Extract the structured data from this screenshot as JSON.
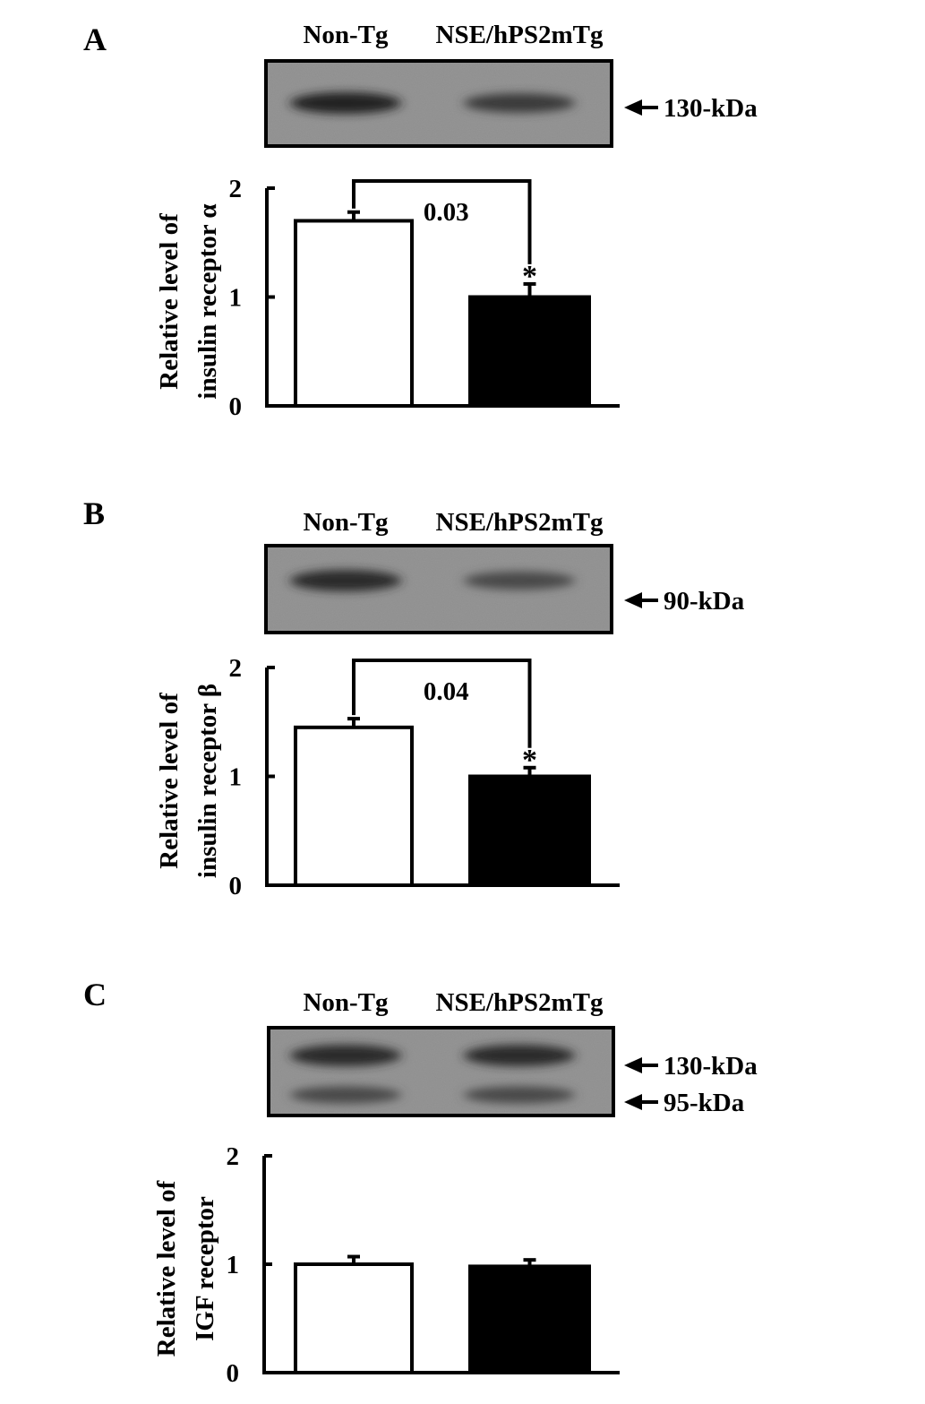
{
  "panels": [
    {
      "letter": "A",
      "lane_labels": [
        "Non-Tg",
        "NSE/hPS2mTg"
      ],
      "markers": [
        "130-kDa"
      ],
      "significance": "0.03",
      "asterisk": "*",
      "blot_bands": [
        [
          {
            "intensity": 0.95,
            "thickness": 1.0
          },
          {
            "intensity": 0.75,
            "thickness": 0.9
          }
        ]
      ]
    },
    {
      "letter": "B",
      "lane_labels": [
        "Non-Tg",
        "NSE/hPS2mTg"
      ],
      "markers": [
        "90-kDa"
      ],
      "significance": "0.04",
      "asterisk": "*",
      "blot_bands": [
        [
          {
            "intensity": 0.9,
            "thickness": 1.0
          },
          {
            "intensity": 0.6,
            "thickness": 0.85
          }
        ]
      ]
    },
    {
      "letter": "C",
      "lane_labels": [
        "Non-Tg",
        "NSE/hPS2mTg"
      ],
      "markers": [
        "130-kDa",
        "95-kDa"
      ],
      "significance": "",
      "asterisk": "",
      "blot_bands": [
        [
          {
            "intensity": 0.9,
            "thickness": 1.0
          },
          {
            "intensity": 0.9,
            "thickness": 1.0
          }
        ],
        [
          {
            "intensity": 0.6,
            "thickness": 0.8
          },
          {
            "intensity": 0.6,
            "thickness": 0.8
          }
        ]
      ]
    }
  ],
  "chart_data": [
    {
      "type": "bar",
      "categories": [
        "Non-Tg",
        "NSE/hPS2mTg"
      ],
      "values": [
        1.7,
        1.0
      ],
      "errors": [
        0.08,
        0.12
      ],
      "bar_colors": [
        "#ffffff",
        "#000000"
      ],
      "ylabel": [
        "Relative level of",
        "insulin receptor α"
      ],
      "yticks": [
        0,
        1,
        2
      ],
      "ylim": [
        0,
        2
      ]
    },
    {
      "type": "bar",
      "categories": [
        "Non-Tg",
        "NSE/hPS2mTg"
      ],
      "values": [
        1.45,
        1.0
      ],
      "errors": [
        0.08,
        0.08
      ],
      "bar_colors": [
        "#ffffff",
        "#000000"
      ],
      "ylabel": [
        "Relative level of",
        "insulin receptor β"
      ],
      "yticks": [
        0,
        1,
        2
      ],
      "ylim": [
        0,
        2
      ]
    },
    {
      "type": "bar",
      "categories": [
        "Non-Tg",
        "NSE/hPS2mTg"
      ],
      "values": [
        1.0,
        0.98
      ],
      "errors": [
        0.07,
        0.06
      ],
      "bar_colors": [
        "#ffffff",
        "#000000"
      ],
      "ylabel": [
        "Relative level of",
        "IGF receptor"
      ],
      "yticks": [
        0,
        1,
        2
      ],
      "ylim": [
        0,
        2
      ]
    }
  ]
}
